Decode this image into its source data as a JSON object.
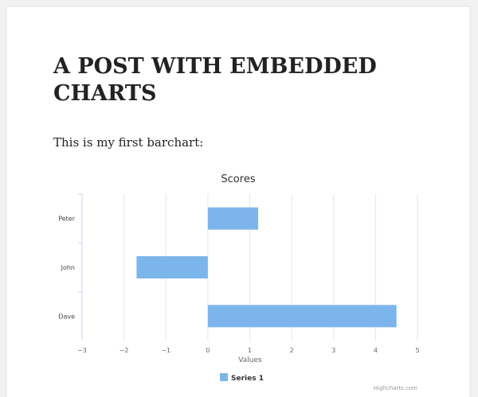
{
  "post": {
    "title_lines": [
      "A POST WITH EMBEDDED",
      "CHARTS"
    ],
    "text": "This is my first barchart:"
  },
  "chart_data": {
    "type": "hbar",
    "title": "Scores",
    "x_label": "Values",
    "categories": [
      "Peter",
      "John",
      "Dave"
    ],
    "series": [
      {
        "name": "Series 1",
        "color": "#7cb5ec",
        "values": [
          1.2,
          -1.7,
          4.5
        ]
      }
    ],
    "xlim": [
      -3,
      5
    ],
    "xticks": [
      {
        "value": -3,
        "label": "−3"
      },
      {
        "value": -2,
        "label": "−2"
      },
      {
        "value": -1,
        "label": "−1"
      },
      0,
      1,
      2,
      3,
      4,
      5
    ],
    "grid": true,
    "legend": "bottom",
    "credit": "Highcharts.com"
  }
}
